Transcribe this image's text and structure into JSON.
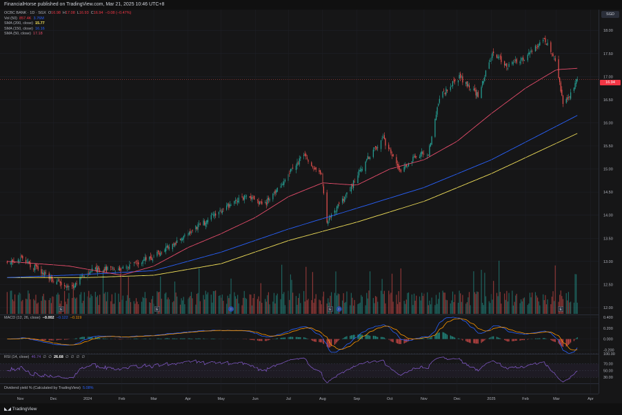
{
  "header": {
    "publish_line": "FinancialHorse published on TradingView.com, Mar 21, 2025 10:46 UTC+8"
  },
  "legend_main": {
    "symbol": "OCBC BANK · 1D · SGX",
    "o_label": "O",
    "o_val": "16.98",
    "h_label": "H",
    "h_val": "17.08",
    "l_label": "L",
    "l_val": "16.93",
    "c_label": "C",
    "c_val": "16.94",
    "chg": "−0.08 (−0.47%)",
    "vol_label": "Vol (50)",
    "vol_val1": "857.4K",
    "vol_val2": "3.76M",
    "sma200_label": "SMA (200, close)",
    "sma200_val": "15.77",
    "sma150_label": "SMA (150, close)",
    "sma150_val": "16.16",
    "sma50_label": "SMA (50, close)",
    "sma50_val": "17.18"
  },
  "legend_macd": {
    "label": "MACD (12, 26, close)",
    "v1": "−0.002",
    "v2": "−0.122",
    "v3": "−0.119"
  },
  "legend_rsi": {
    "label": "RSI (14, close)",
    "v1": "46.74",
    "v2": "∅",
    "v3": "∅",
    "v4": "26.68",
    "v5": "∅",
    "v6": "∅",
    "v7": "∅",
    "v8": "∅"
  },
  "legend_div": {
    "label": "Dividend yield % (Calculated by TradingView)",
    "v1": "5.08%"
  },
  "currency_badge": "SGD",
  "last_price_badge": "16.94",
  "footer": {
    "brand": "TradingView"
  },
  "chart_data": {
    "type": "candlestick",
    "price_axis": {
      "ticks": [
        "18.00",
        "17.50",
        "17.00",
        "16.50",
        "16.00",
        "15.50",
        "15.00",
        "14.50",
        "14.00",
        "13.50",
        "13.00",
        "12.50",
        "12.00"
      ],
      "ylim": [
        11.85,
        18.45
      ]
    },
    "macd_axis": {
      "ticks": [
        "0.400",
        "0.200",
        "0.000",
        "-0.200"
      ],
      "ylim": [
        -0.27,
        0.45
      ]
    },
    "rsi_axis": {
      "ticks": [
        "100.00",
        "70.00",
        "50.00",
        "30.00"
      ],
      "ylim": [
        12,
        100
      ]
    },
    "x_labels": [
      "Nov",
      "Dec",
      "2024",
      "Feb",
      "Mar",
      "Apr",
      "May",
      "Jun",
      "Jul",
      "Aug",
      "Sep",
      "Oct",
      "Nov",
      "Dec",
      "2025",
      "Feb",
      "Mar",
      "Apr"
    ],
    "event_markers": [
      {
        "label": "E",
        "date": "2023-12-08"
      },
      {
        "label": "E",
        "date": "2024-03-04"
      },
      {
        "label": "D",
        "date": "2024-05-10"
      },
      {
        "label": "E",
        "date": "2024-08-08"
      },
      {
        "label": "D",
        "date": "2024-08-16"
      },
      {
        "label": "E",
        "date": "2025-03-05"
      }
    ],
    "close_anchors": [
      {
        "date": "2023-10-20",
        "close": 13.0
      },
      {
        "date": "2023-11-01",
        "close": 13.05
      },
      {
        "date": "2023-11-15",
        "close": 12.85
      },
      {
        "date": "2023-12-01",
        "close": 12.6
      },
      {
        "date": "2023-12-15",
        "close": 12.4
      },
      {
        "date": "2024-01-02",
        "close": 12.8
      },
      {
        "date": "2024-02-01",
        "close": 12.85
      },
      {
        "date": "2024-03-01",
        "close": 13.1
      },
      {
        "date": "2024-04-01",
        "close": 13.6
      },
      {
        "date": "2024-05-01",
        "close": 14.1
      },
      {
        "date": "2024-05-20",
        "close": 14.4
      },
      {
        "date": "2024-06-10",
        "close": 14.25
      },
      {
        "date": "2024-06-25",
        "close": 14.7
      },
      {
        "date": "2024-07-15",
        "close": 15.3
      },
      {
        "date": "2024-07-31",
        "close": 14.85
      },
      {
        "date": "2024-08-05",
        "close": 13.85
      },
      {
        "date": "2024-08-20",
        "close": 14.35
      },
      {
        "date": "2024-09-10",
        "close": 15.2
      },
      {
        "date": "2024-09-25",
        "close": 15.65
      },
      {
        "date": "2024-10-10",
        "close": 14.95
      },
      {
        "date": "2024-10-25",
        "close": 15.3
      },
      {
        "date": "2024-11-05",
        "close": 15.35
      },
      {
        "date": "2024-11-15",
        "close": 16.55
      },
      {
        "date": "2024-12-03",
        "close": 17.0
      },
      {
        "date": "2024-12-20",
        "close": 16.6
      },
      {
        "date": "2025-01-03",
        "close": 17.55
      },
      {
        "date": "2025-01-15",
        "close": 17.2
      },
      {
        "date": "2025-02-03",
        "close": 17.45
      },
      {
        "date": "2025-02-18",
        "close": 17.85
      },
      {
        "date": "2025-02-28",
        "close": 17.35
      },
      {
        "date": "2025-03-07",
        "close": 16.45
      },
      {
        "date": "2025-03-14",
        "close": 16.6
      },
      {
        "date": "2025-03-20",
        "close": 16.94
      }
    ],
    "sma50_anchors": [
      {
        "date": "2023-10-20",
        "v": 13.0
      },
      {
        "date": "2023-12-15",
        "v": 12.9
      },
      {
        "date": "2024-02-01",
        "v": 12.7
      },
      {
        "date": "2024-03-01",
        "v": 12.9
      },
      {
        "date": "2024-04-01",
        "v": 13.3
      },
      {
        "date": "2024-05-01",
        "v": 13.6
      },
      {
        "date": "2024-06-01",
        "v": 13.95
      },
      {
        "date": "2024-07-01",
        "v": 14.4
      },
      {
        "date": "2024-08-01",
        "v": 14.7
      },
      {
        "date": "2024-09-01",
        "v": 14.65
      },
      {
        "date": "2024-10-01",
        "v": 15.0
      },
      {
        "date": "2024-11-01",
        "v": 15.2
      },
      {
        "date": "2024-12-01",
        "v": 15.6
      },
      {
        "date": "2025-01-01",
        "v": 16.2
      },
      {
        "date": "2025-02-01",
        "v": 16.75
      },
      {
        "date": "2025-03-01",
        "v": 17.15
      },
      {
        "date": "2025-03-20",
        "v": 17.18
      }
    ],
    "sma150_anchors": [
      {
        "date": "2023-10-20",
        "v": 12.65
      },
      {
        "date": "2024-01-01",
        "v": 12.72
      },
      {
        "date": "2024-03-01",
        "v": 12.8
      },
      {
        "date": "2024-05-01",
        "v": 13.2
      },
      {
        "date": "2024-07-01",
        "v": 13.7
      },
      {
        "date": "2024-09-01",
        "v": 14.15
      },
      {
        "date": "2024-11-01",
        "v": 14.6
      },
      {
        "date": "2025-01-01",
        "v": 15.2
      },
      {
        "date": "2025-03-20",
        "v": 16.16
      }
    ],
    "sma200_anchors": [
      {
        "date": "2023-10-20",
        "v": 12.65
      },
      {
        "date": "2024-01-01",
        "v": 12.65
      },
      {
        "date": "2024-03-01",
        "v": 12.7
      },
      {
        "date": "2024-05-01",
        "v": 12.95
      },
      {
        "date": "2024-07-01",
        "v": 13.45
      },
      {
        "date": "2024-09-01",
        "v": 13.85
      },
      {
        "date": "2024-11-01",
        "v": 14.3
      },
      {
        "date": "2025-01-01",
        "v": 14.9
      },
      {
        "date": "2025-03-20",
        "v": 15.77
      }
    ]
  },
  "colors": {
    "up": "#26a69a",
    "down": "#ef5350",
    "sma50": "#e84d6c",
    "sma150": "#2962ff",
    "sma200": "#f5e35a",
    "macd": "#2962ff",
    "signal": "#ff9800",
    "rsi": "#7e57c2",
    "grid": "#1f2128",
    "bg": "#161617"
  }
}
